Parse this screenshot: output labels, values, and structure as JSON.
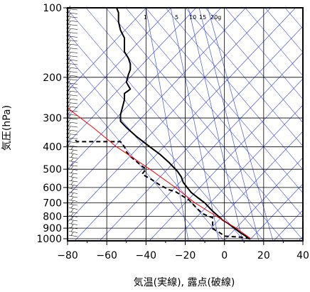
{
  "chart_data": {
    "type": "line",
    "title": "",
    "xlabel": "気温(実線), 露点(破線)",
    "ylabel": "気圧(hPa)",
    "xlim": [
      -80,
      40
    ],
    "ylim": [
      1040,
      100
    ],
    "yscale": "log",
    "x_ticks": [
      -80,
      -60,
      -40,
      -20,
      0,
      20,
      40
    ],
    "x_tick_labels": [
      "−80",
      "−60",
      "−40",
      "−20",
      "0",
      "20",
      "40"
    ],
    "y_ticks": [
      100,
      200,
      300,
      400,
      500,
      600,
      700,
      800,
      900,
      1000
    ],
    "y_tick_labels": [
      "100",
      "200",
      "300",
      "400",
      "500",
      "600",
      "700",
      "800",
      "900",
      "1000"
    ],
    "mixing_ratio_labels": [
      "1",
      "5",
      "10",
      "15",
      "20g"
    ],
    "grid": true,
    "colors": {
      "temperature": "#000000",
      "dewpoint": "#000000",
      "parcel": "#ff0000",
      "background_lines": "#4455dd",
      "grid": "#000000"
    },
    "series": [
      {
        "key": "temperature",
        "style": "solid",
        "points": [
          [
            12.5,
            1000
          ],
          [
            10.5,
            970
          ],
          [
            8,
            940
          ],
          [
            5,
            900
          ],
          [
            2,
            860
          ],
          [
            -1,
            830
          ],
          [
            -3,
            800
          ],
          [
            -6,
            760
          ],
          [
            -10,
            700
          ],
          [
            -14,
            660
          ],
          [
            -17,
            630
          ],
          [
            -19,
            600
          ],
          [
            -21,
            570
          ],
          [
            -22,
            540
          ],
          [
            -24,
            510
          ],
          [
            -28,
            470
          ],
          [
            -33,
            430
          ],
          [
            -38,
            400
          ],
          [
            -45,
            360
          ],
          [
            -50,
            330
          ],
          [
            -53,
            310
          ],
          [
            -53,
            290
          ],
          [
            -52,
            270
          ],
          [
            -51,
            250
          ],
          [
            -51,
            235
          ],
          [
            -48,
            225
          ],
          [
            -50,
            210
          ],
          [
            -49,
            195
          ],
          [
            -48,
            185
          ],
          [
            -48,
            175
          ],
          [
            -49,
            165
          ],
          [
            -51,
            155
          ],
          [
            -51,
            145
          ],
          [
            -51,
            135
          ],
          [
            -53,
            125
          ],
          [
            -54,
            115
          ],
          [
            -54,
            105
          ],
          [
            -55,
            100
          ]
        ]
      },
      {
        "key": "dewpoint",
        "style": "dashed",
        "points": [
          [
            13,
            1000
          ],
          [
            9,
            985
          ],
          [
            0,
            975
          ],
          [
            -1,
            960
          ],
          [
            -3,
            935
          ],
          [
            -6,
            905
          ],
          [
            -6,
            880
          ],
          [
            -6,
            855
          ],
          [
            -6,
            830
          ],
          [
            -6,
            810
          ],
          [
            -8,
            800
          ],
          [
            -11,
            780
          ],
          [
            -14,
            740
          ],
          [
            -18,
            680
          ],
          [
            -25,
            625
          ],
          [
            -28,
            615
          ],
          [
            -33,
            585
          ],
          [
            -37,
            555
          ],
          [
            -42,
            525
          ],
          [
            -40,
            500
          ],
          [
            -44,
            470
          ],
          [
            -48,
            440
          ],
          [
            -50,
            420
          ],
          [
            -51,
            400
          ],
          [
            -53,
            380
          ],
          [
            -75,
            380
          ],
          [
            -76,
            375
          ]
        ]
      },
      {
        "key": "parcel",
        "style": "solid",
        "points": [
          [
            13.5,
            1000
          ],
          [
            6,
            900
          ],
          [
            -4,
            800
          ],
          [
            -15,
            700
          ],
          [
            -25,
            600
          ],
          [
            -38,
            500
          ],
          [
            -46,
            450
          ],
          [
            -55,
            400
          ],
          [
            -67,
            330
          ],
          [
            -78,
            280
          ],
          [
            -84,
            250
          ]
        ]
      }
    ]
  }
}
